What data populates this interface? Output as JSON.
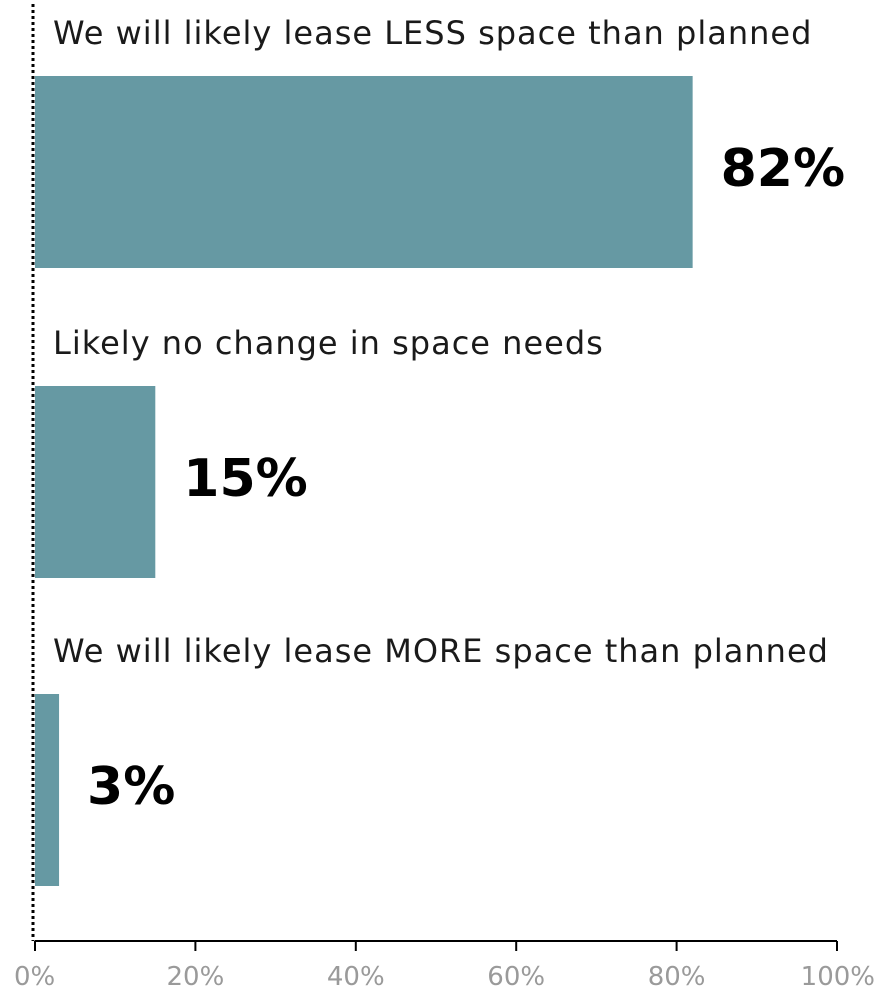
{
  "chart_data": {
    "type": "bar",
    "orientation": "horizontal",
    "categories": [
      "We will likely lease LESS space than planned",
      "Likely no change in space needs",
      "We will likely lease MORE space than planned"
    ],
    "values": [
      82,
      15,
      3
    ],
    "value_labels": [
      "82%",
      "15%",
      "3%"
    ],
    "xlim": [
      0,
      100
    ],
    "x_ticks": [
      0,
      20,
      40,
      60,
      80,
      100
    ],
    "x_tick_labels": [
      "0%",
      "20%",
      "40%",
      "60%",
      "80%",
      "100%"
    ],
    "title": "",
    "xlabel": "",
    "ylabel": "",
    "grid": false,
    "legend": "none",
    "colors": {
      "bar": "#6699a3",
      "value_text": "#000000",
      "category_text": "#1a1a1a",
      "tick_text": "#9a9a9a",
      "axis": "#000000"
    }
  }
}
